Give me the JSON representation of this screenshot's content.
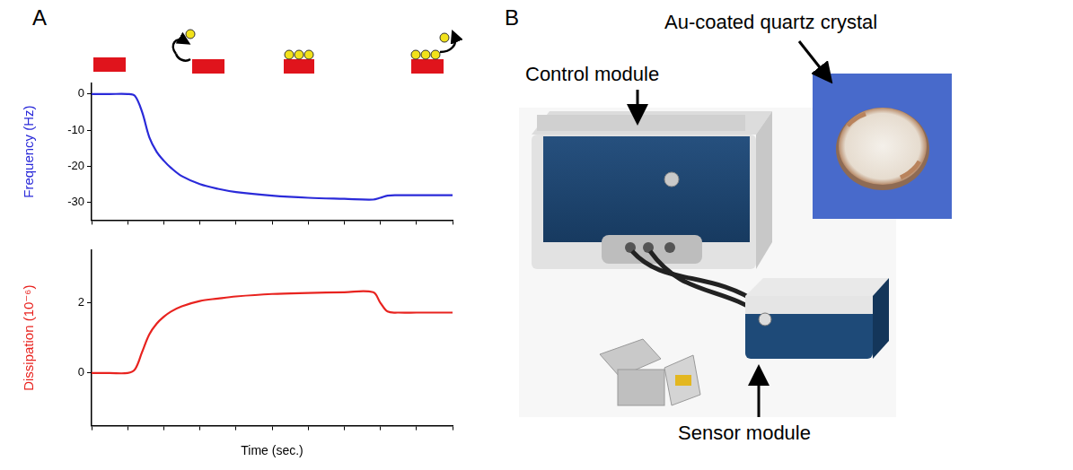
{
  "panel_labels": [
    "A",
    "B"
  ],
  "chart_data": [
    {
      "type": "line",
      "ylabel": "Frequency (Hz)",
      "x": [
        0,
        5,
        10,
        12,
        14,
        16,
        18,
        20,
        22,
        25,
        30,
        35,
        40,
        50,
        60,
        70,
        78,
        80,
        82,
        85,
        90,
        100
      ],
      "values": [
        0,
        0,
        0,
        -0.5,
        -5,
        -12,
        -16,
        -18.5,
        -20.5,
        -22.8,
        -25,
        -26.3,
        -27.2,
        -28.2,
        -28.8,
        -29.1,
        -29.3,
        -28.8,
        -28.2,
        -28.1,
        -28.1,
        -28.1
      ],
      "color": "#2a2ad9",
      "xlim": [
        0,
        100
      ],
      "ylim": [
        -35,
        3
      ],
      "yticks": [
        0,
        -10,
        -20,
        -30
      ],
      "tick_labels": "y",
      "grid": false
    },
    {
      "type": "line",
      "ylabel": "Dissipation (10⁻⁶)",
      "xlabel": "Time (sec.)",
      "x": [
        0,
        5,
        10,
        12,
        14,
        16,
        18,
        20,
        22,
        25,
        30,
        35,
        40,
        50,
        60,
        70,
        78,
        80,
        82,
        85,
        90,
        100
      ],
      "values": [
        0,
        0,
        0,
        0.1,
        0.6,
        1.1,
        1.4,
        1.6,
        1.75,
        1.9,
        2.05,
        2.12,
        2.18,
        2.25,
        2.28,
        2.3,
        2.3,
        2.0,
        1.75,
        1.72,
        1.72,
        1.72
      ],
      "color": "#e8231f",
      "xlim": [
        0,
        100
      ],
      "ylim": [
        -1.5,
        3.5
      ],
      "yticks": [
        0,
        2
      ],
      "tick_labels": "y",
      "grid": false
    }
  ],
  "photo_labels": {
    "control_module": "Control module",
    "crystal": "Au-coated quartz crystal",
    "sensor_module": "Sensor module"
  }
}
